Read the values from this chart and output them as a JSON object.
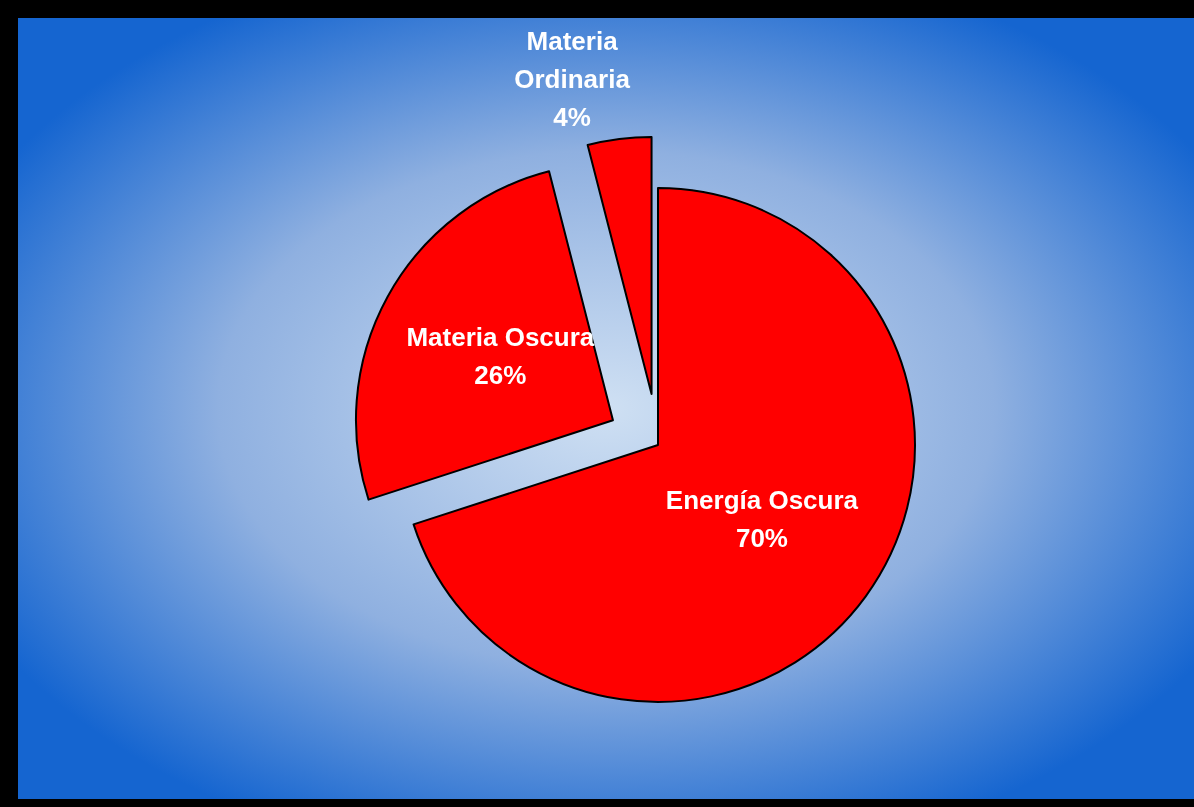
{
  "chart_data": {
    "type": "pie",
    "categories": [
      "Energía Oscura",
      "Materia Oscura",
      "Materia Ordinaria"
    ],
    "values": [
      70,
      26,
      4
    ],
    "colors": [
      "#ff0000",
      "#ff0000",
      "#ff0000"
    ],
    "value_labels": [
      "70%",
      "26%",
      "4%"
    ],
    "legend": false
  }
}
